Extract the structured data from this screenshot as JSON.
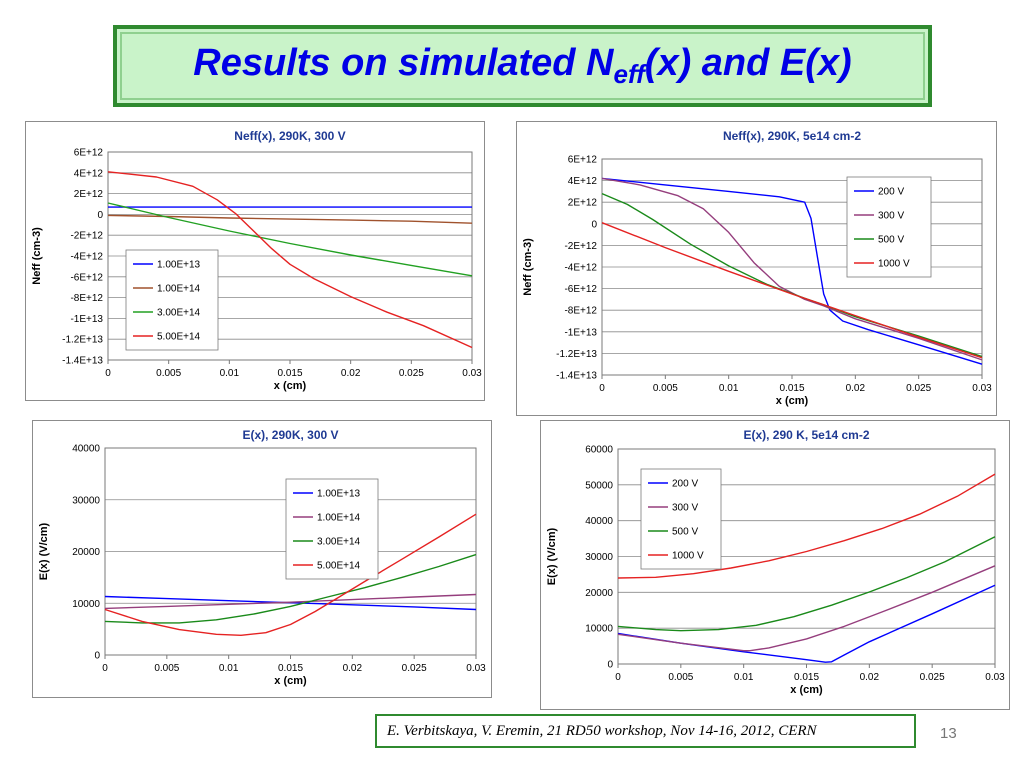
{
  "slide": {
    "title_main": "Results on simulated N",
    "title_sub": "eff",
    "title_rest": "(x) and E(x)",
    "footer": "E. Verbitskaya, V. Eremin, 21 RD50 workshop, Nov 14-16, 2012, CERN",
    "page_number": "13"
  },
  "chart_data": [
    {
      "type": "line",
      "title": "Neff(x), 290K, 300 V",
      "xlabel": "x (cm)",
      "ylabel": "Neff (cm-3)",
      "xlim": [
        0,
        0.03
      ],
      "ylim": [
        -14000000000000.0,
        6000000000000.0
      ],
      "xticks": [
        0,
        0.005,
        0.01,
        0.015,
        0.02,
        0.025,
        0.03
      ],
      "xtick_labels": [
        "0",
        "0.005",
        "0.01",
        "0.015",
        "0.02",
        "0.025",
        "0.03"
      ],
      "yticks": [
        6000000000000.0,
        4000000000000.0,
        2000000000000.0,
        0,
        -2000000000000.0,
        -4000000000000.0,
        -6000000000000.0,
        -8000000000000.0,
        -10000000000000.0,
        -12000000000000.0,
        -14000000000000.0
      ],
      "ytick_labels": [
        "6E+12",
        "4E+12",
        "2E+12",
        "0",
        "-2E+12",
        "-4E+12",
        "-6E+12",
        "-8E+12",
        "-1E+13",
        "-1.2E+13",
        "-1.4E+13"
      ],
      "grid": true,
      "legend_position": "lower-left",
      "series": [
        {
          "name": "1.00E+13",
          "color": "#0000ff",
          "x": [
            0,
            0.03
          ],
          "y": [
            700000000000.0,
            700000000000.0
          ]
        },
        {
          "name": "1.00E+14",
          "color": "#a0522d",
          "x": [
            0,
            0.005,
            0.01,
            0.015,
            0.02,
            0.025,
            0.03
          ],
          "y": [
            -100000000000.0,
            -200000000000.0,
            -350000000000.0,
            -450000000000.0,
            -550000000000.0,
            -650000000000.0,
            -850000000000.0
          ]
        },
        {
          "name": "3.00E+14",
          "color": "#22a022",
          "x": [
            0,
            0.005,
            0.01,
            0.015,
            0.02,
            0.025,
            0.03
          ],
          "y": [
            1100000000000.0,
            -300000000000.0,
            -1600000000000.0,
            -2800000000000.0,
            -3900000000000.0,
            -4900000000000.0,
            -5900000000000.0
          ]
        },
        {
          "name": "5.00E+14",
          "color": "#e52222",
          "x": [
            0,
            0.004,
            0.007,
            0.009,
            0.0105,
            0.012,
            0.0135,
            0.015,
            0.017,
            0.02,
            0.023,
            0.026,
            0.03
          ],
          "y": [
            4100000000000.0,
            3600000000000.0,
            2700000000000.0,
            1400000000000.0,
            100000000000.0,
            -1600000000000.0,
            -3300000000000.0,
            -4800000000000.0,
            -6200000000000.0,
            -7900000000000.0,
            -9400000000000.0,
            -10700000000000.0,
            -12800000000000.0
          ]
        }
      ]
    },
    {
      "type": "line",
      "title": "Neff(x), 290K, 5e14 cm-2",
      "xlabel": "x (cm)",
      "ylabel": "Neff (cm-3)",
      "xlim": [
        0,
        0.03
      ],
      "ylim": [
        -14000000000000.0,
        6000000000000.0
      ],
      "xticks": [
        0,
        0.005,
        0.01,
        0.015,
        0.02,
        0.025,
        0.03
      ],
      "xtick_labels": [
        "0",
        "0.005",
        "0.01",
        "0.015",
        "0.02",
        "0.025",
        "0.03"
      ],
      "yticks": [
        6000000000000.0,
        4000000000000.0,
        2000000000000.0,
        0,
        -2000000000000.0,
        -4000000000000.0,
        -6000000000000.0,
        -8000000000000.0,
        -10000000000000.0,
        -12000000000000.0,
        -14000000000000.0
      ],
      "ytick_labels": [
        "6E+12",
        "4E+12",
        "2E+12",
        "0",
        "-2E+12",
        "-4E+12",
        "-6E+12",
        "-8E+12",
        "-1E+13",
        "-1.2E+13",
        "-1.4E+13"
      ],
      "grid": true,
      "legend_position": "upper-right",
      "series": [
        {
          "name": "200 V",
          "color": "#0000ff",
          "x": [
            0,
            0.005,
            0.01,
            0.014,
            0.016,
            0.0165,
            0.017,
            0.0175,
            0.018,
            0.019,
            0.021,
            0.025,
            0.03
          ],
          "y": [
            4200000000000.0,
            3600000000000.0,
            3000000000000.0,
            2500000000000.0,
            2000000000000.0,
            500000000000.0,
            -3000000000000.0,
            -6500000000000.0,
            -8000000000000.0,
            -9000000000000.0,
            -9800000000000.0,
            -11200000000000.0,
            -13000000000000.0
          ]
        },
        {
          "name": "300 V",
          "color": "#953e7d",
          "x": [
            0,
            0.003,
            0.006,
            0.008,
            0.01,
            0.012,
            0.014,
            0.016,
            0.0175,
            0.02,
            0.025,
            0.03
          ],
          "y": [
            4200000000000.0,
            3600000000000.0,
            2600000000000.0,
            1400000000000.0,
            -800000000000.0,
            -3600000000000.0,
            -5800000000000.0,
            -7000000000000.0,
            -7600000000000.0,
            -8800000000000.0,
            -10600000000000.0,
            -12600000000000.0
          ]
        },
        {
          "name": "500 V",
          "color": "#1a8a1a",
          "x": [
            0,
            0.002,
            0.004,
            0.007,
            0.01,
            0.013,
            0.016,
            0.0175,
            0.02,
            0.025,
            0.03
          ],
          "y": [
            2800000000000.0,
            1800000000000.0,
            400000000000.0,
            -1900000000000.0,
            -3900000000000.0,
            -5600000000000.0,
            -6900000000000.0,
            -7500000000000.0,
            -8600000000000.0,
            -10400000000000.0,
            -12300000000000.0
          ]
        },
        {
          "name": "1000 V",
          "color": "#e52222",
          "x": [
            0,
            0.005,
            0.01,
            0.015,
            0.0175,
            0.02,
            0.025,
            0.03
          ],
          "y": [
            100000000000.0,
            -2200000000000.0,
            -4400000000000.0,
            -6500000000000.0,
            -7500000000000.0,
            -8500000000000.0,
            -10500000000000.0,
            -12400000000000.0
          ]
        }
      ]
    },
    {
      "type": "line",
      "title": "E(x), 290K, 300 V",
      "xlabel": "x (cm)",
      "ylabel": "E(x) (V/cm)",
      "xlim": [
        0,
        0.03
      ],
      "ylim": [
        0,
        40000
      ],
      "xticks": [
        0,
        0.005,
        0.01,
        0.015,
        0.02,
        0.025,
        0.03
      ],
      "xtick_labels": [
        "0",
        "0.005",
        "0.01",
        "0.015",
        "0.02",
        "0.025",
        "0.03"
      ],
      "yticks": [
        40000,
        30000,
        20000,
        10000,
        0
      ],
      "ytick_labels": [
        "40000",
        "30000",
        "20000",
        "10000",
        "0"
      ],
      "grid": true,
      "legend_position": "upper-right",
      "series": [
        {
          "name": "1.00E+13",
          "color": "#0000ff",
          "x": [
            0,
            0.005,
            0.01,
            0.015,
            0.02,
            0.025,
            0.03
          ],
          "y": [
            11300,
            10900,
            10500,
            10100,
            9700,
            9300,
            8800
          ]
        },
        {
          "name": "1.00E+14",
          "color": "#953e7d",
          "x": [
            0,
            0.005,
            0.01,
            0.015,
            0.02,
            0.025,
            0.03
          ],
          "y": [
            9000,
            9400,
            9800,
            10200,
            10700,
            11200,
            11700
          ]
        },
        {
          "name": "3.00E+14",
          "color": "#1a8a1a",
          "x": [
            0,
            0.003,
            0.006,
            0.009,
            0.012,
            0.015,
            0.018,
            0.021,
            0.024,
            0.027,
            0.03
          ],
          "y": [
            6500,
            6200,
            6200,
            6800,
            7900,
            9400,
            11200,
            13000,
            15000,
            17100,
            19400
          ]
        },
        {
          "name": "5.00E+14",
          "color": "#e52222",
          "x": [
            0,
            0.003,
            0.006,
            0.009,
            0.011,
            0.013,
            0.015,
            0.017,
            0.019,
            0.021,
            0.024,
            0.027,
            0.03
          ],
          "y": [
            8800,
            6500,
            4900,
            4000,
            3800,
            4300,
            5900,
            8400,
            11300,
            14200,
            18500,
            22800,
            27200
          ]
        }
      ]
    },
    {
      "type": "line",
      "title": "E(x), 290 K, 5e14 cm-2",
      "xlabel": "x (cm)",
      "ylabel": "E(x) (V/cm)",
      "xlim": [
        0,
        0.03
      ],
      "ylim": [
        0,
        60000
      ],
      "xticks": [
        0,
        0.005,
        0.01,
        0.015,
        0.02,
        0.025,
        0.03
      ],
      "xtick_labels": [
        "0",
        "0.005",
        "0.01",
        "0.015",
        "0.02",
        "0.025",
        "0.03"
      ],
      "yticks": [
        60000,
        50000,
        40000,
        30000,
        20000,
        10000,
        0
      ],
      "ytick_labels": [
        "60000",
        "50000",
        "40000",
        "30000",
        "20000",
        "10000",
        "0"
      ],
      "grid": true,
      "legend_position": "upper-left",
      "series": [
        {
          "name": "200 V",
          "color": "#0000ff",
          "x": [
            0,
            0.005,
            0.01,
            0.015,
            0.0165,
            0.017,
            0.018,
            0.02,
            0.025,
            0.03
          ],
          "y": [
            8500,
            5800,
            3400,
            1200,
            500,
            600,
            2500,
            6200,
            14000,
            22000
          ]
        },
        {
          "name": "300 V",
          "color": "#953e7d",
          "x": [
            0,
            0.005,
            0.01,
            0.0105,
            0.012,
            0.015,
            0.018,
            0.021,
            0.025,
            0.03
          ],
          "y": [
            8300,
            5800,
            3700,
            3700,
            4500,
            7000,
            10500,
            14500,
            20000,
            27400
          ]
        },
        {
          "name": "500 V",
          "color": "#1a8a1a",
          "x": [
            0,
            0.003,
            0.005,
            0.008,
            0.011,
            0.014,
            0.017,
            0.02,
            0.023,
            0.026,
            0.03
          ],
          "y": [
            10500,
            9600,
            9300,
            9600,
            10800,
            13200,
            16400,
            20100,
            24100,
            28500,
            35500
          ]
        },
        {
          "name": "1000 V",
          "color": "#e52222",
          "x": [
            0,
            0.003,
            0.006,
            0.009,
            0.012,
            0.015,
            0.018,
            0.021,
            0.024,
            0.027,
            0.03
          ],
          "y": [
            24000,
            24200,
            25200,
            26800,
            28800,
            31400,
            34400,
            37800,
            41800,
            46800,
            53000
          ]
        }
      ]
    }
  ]
}
